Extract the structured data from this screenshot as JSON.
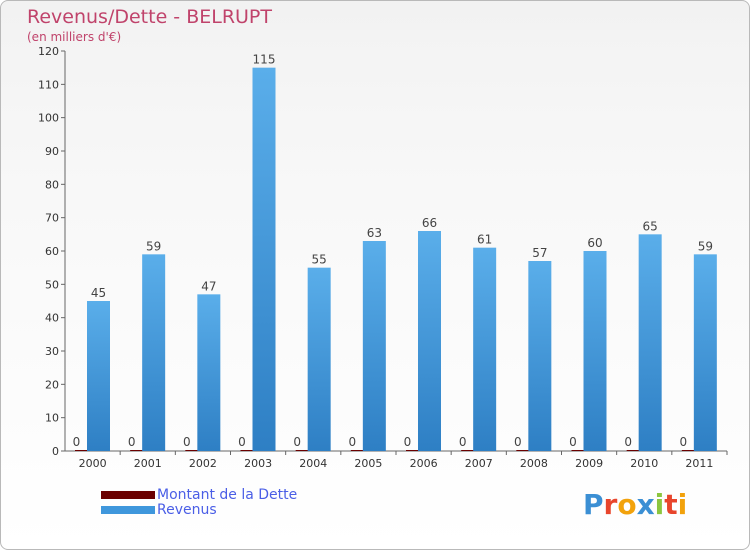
{
  "chart_data": {
    "type": "bar",
    "title": "Revenus/Dette - BELRUPT",
    "subtitle": "(en milliers d'€)",
    "categories": [
      "2000",
      "2001",
      "2002",
      "2003",
      "2004",
      "2005",
      "2006",
      "2007",
      "2008",
      "2009",
      "2010",
      "2011"
    ],
    "series": [
      {
        "name": "Montant de la Dette",
        "color": "#6b0000",
        "values": [
          0,
          0,
          0,
          0,
          0,
          0,
          0,
          0,
          0,
          0,
          0,
          0
        ]
      },
      {
        "name": "Revenus",
        "color": "#3f97dc",
        "values": [
          45,
          59,
          47,
          115,
          55,
          63,
          66,
          61,
          57,
          60,
          65,
          59
        ]
      }
    ],
    "ylim": [
      0,
      120
    ],
    "yticks": [
      0,
      10,
      20,
      30,
      40,
      50,
      60,
      70,
      80,
      90,
      100,
      110,
      120
    ],
    "grid": false,
    "legend_position": "bottom-left"
  },
  "logo": {
    "text": "Proxiti",
    "letter_colors": [
      "#3b8fd4",
      "#e8452c",
      "#f2a20c",
      "#3b8fd4",
      "#8cc63f",
      "#e8452c",
      "#f2a20c"
    ]
  }
}
